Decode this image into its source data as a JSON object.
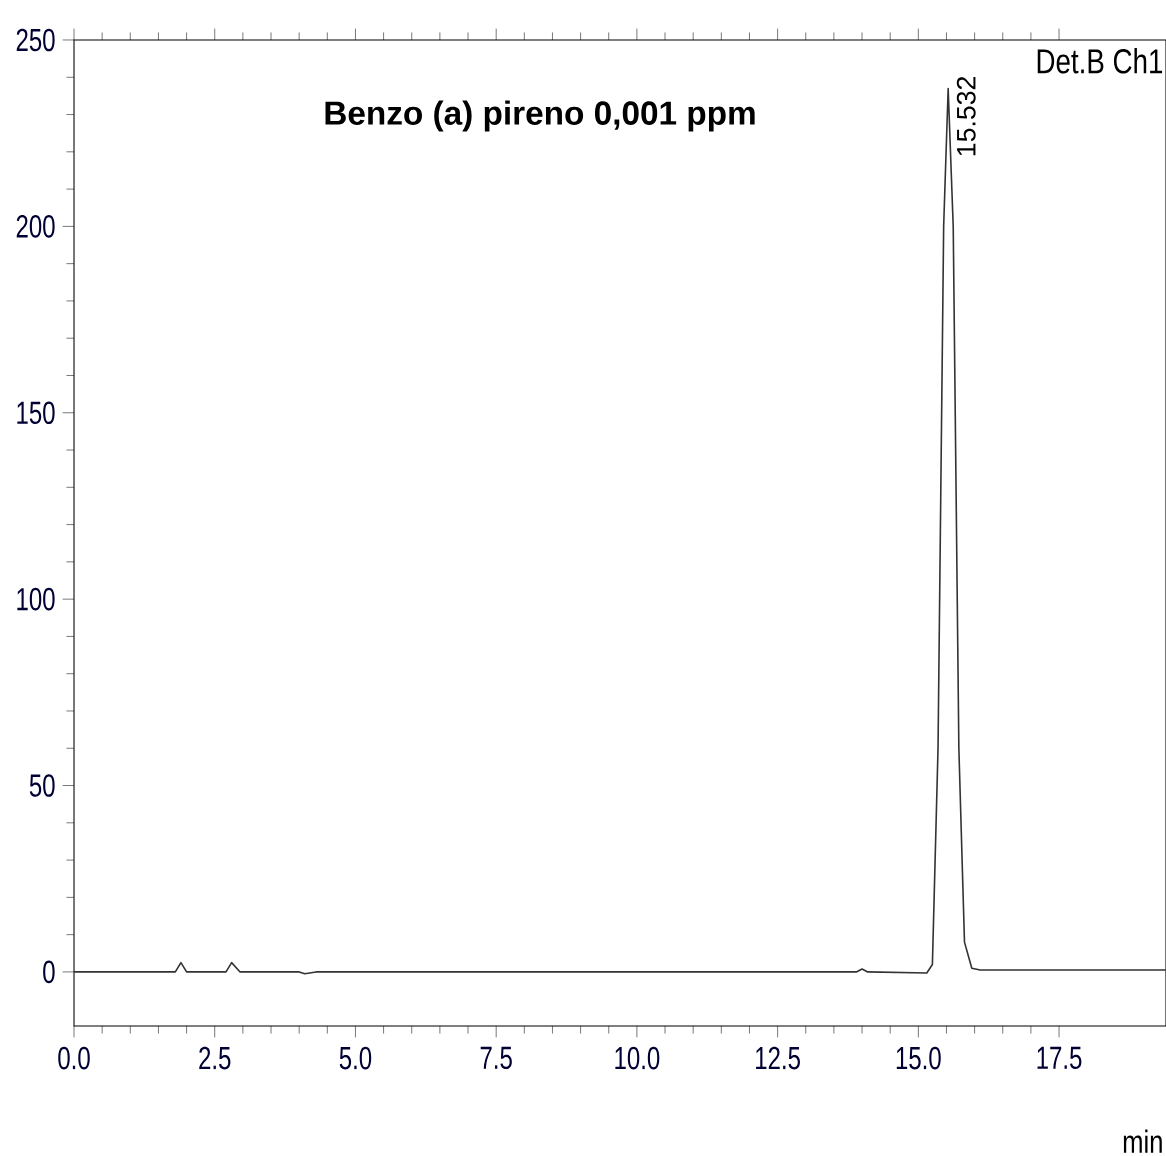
{
  "chart_data": {
    "type": "line",
    "title": "Benzo (a) pireno 0,001 ppm",
    "xlabel": "min",
    "annotations": [
      {
        "text": "15.532",
        "x": 15.532,
        "y": 237
      },
      "Det.B Ch1"
    ],
    "xlim": [
      0,
      19.4
    ],
    "ylim": [
      -14.5,
      250
    ],
    "xticks": [
      {
        "value": 0,
        "label": "0.0"
      },
      {
        "value": 2.5,
        "label": "2.5"
      },
      {
        "value": 5,
        "label": "5.0"
      },
      {
        "value": 7.5,
        "label": "7.5"
      },
      {
        "value": 10,
        "label": "10.0"
      },
      {
        "value": 12.5,
        "label": "12.5"
      },
      {
        "value": 15,
        "label": "15.0"
      },
      {
        "value": 17.5,
        "label": "17.5"
      }
    ],
    "yticks": [
      0,
      50,
      100,
      150,
      200,
      250
    ],
    "grid": false,
    "series": [
      {
        "color": "#333333",
        "x": [
          0,
          1.8,
          1.9,
          2.0,
          2.7,
          2.8,
          2.95,
          4.0,
          4.1,
          4.3,
          13.9,
          14.0,
          14.1,
          15.15,
          15.25,
          15.35,
          15.45,
          15.53,
          15.62,
          15.72,
          15.82,
          15.95,
          16.1,
          19.4
        ],
        "values": [
          0,
          0,
          2.5,
          0,
          0,
          2.5,
          0,
          0,
          -0.5,
          0,
          0,
          0.8,
          0,
          -0.3,
          2,
          60,
          200,
          237,
          200,
          60,
          8,
          1,
          0.5,
          0.5
        ]
      }
    ]
  }
}
